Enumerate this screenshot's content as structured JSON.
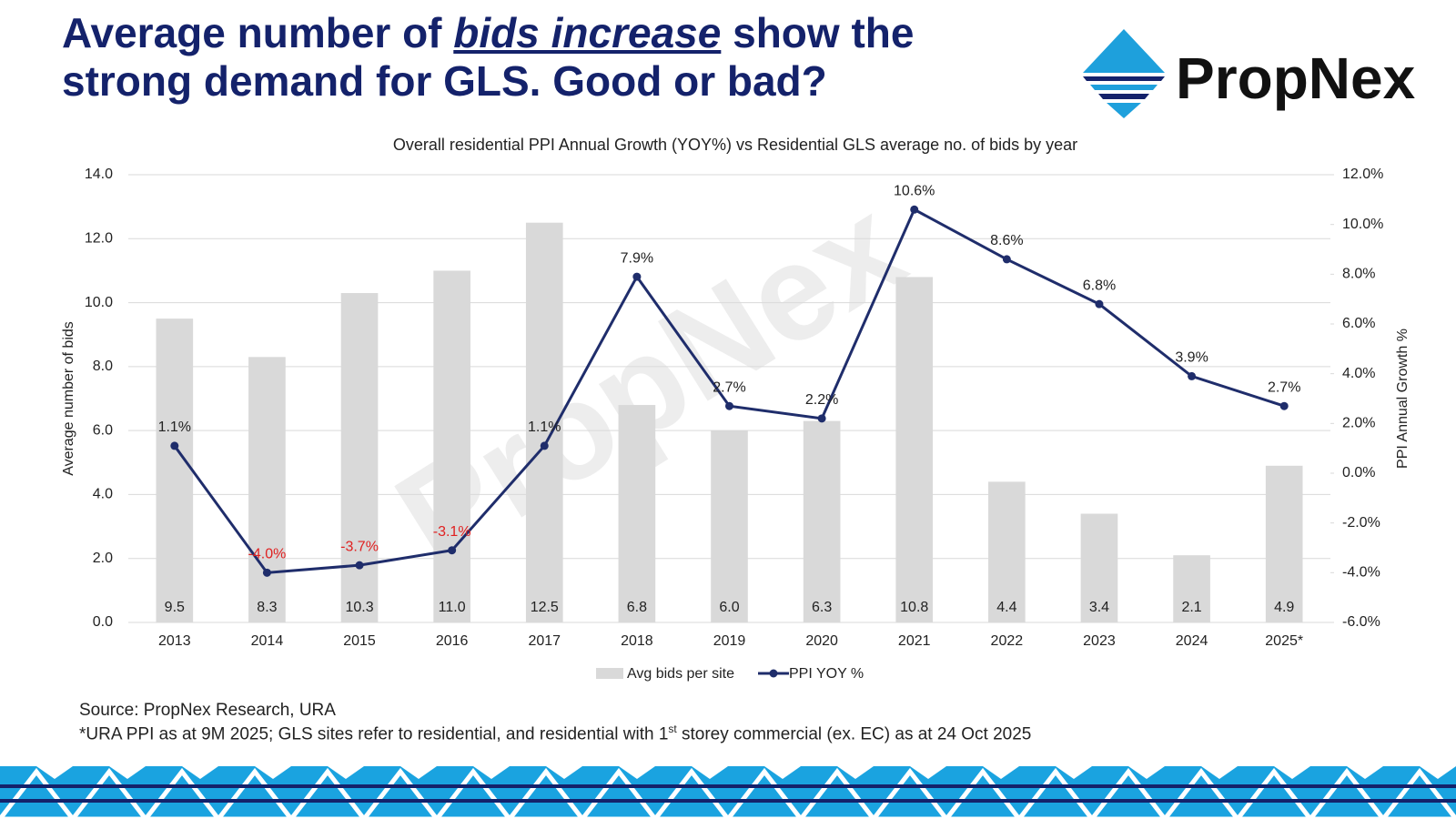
{
  "slide_title": {
    "before": "Average number of ",
    "emphasis": "bids increase",
    "after": " show the strong demand for GLS. Good or bad?"
  },
  "logo": "PropNex",
  "chart_data": {
    "type": "bar_line",
    "title": "Overall residential PPI Annual Growth (YOY%) vs Residential GLS average no. of bids by year",
    "watermark": "PropNex",
    "categories": [
      "2013",
      "2014",
      "2015",
      "2016",
      "2017",
      "2018",
      "2019",
      "2020",
      "2021",
      "2022",
      "2023",
      "2024",
      "2025*"
    ],
    "series": [
      {
        "name": "Avg bids per site",
        "type": "bar",
        "color": "#d9d9d9",
        "axis": "y",
        "values": [
          9.5,
          8.3,
          10.3,
          11.0,
          12.5,
          6.8,
          6.0,
          6.3,
          10.8,
          4.4,
          3.4,
          2.1,
          4.9
        ],
        "value_labels": [
          "9.5",
          "8.3",
          "10.3",
          "11.0",
          "12.5",
          "6.8",
          "6.0",
          "6.3",
          "10.8",
          "4.4",
          "3.4",
          "2.1",
          "4.9"
        ]
      },
      {
        "name": "PPI YOY %",
        "type": "line",
        "color": "#1f2d6b",
        "axis": "y2",
        "negative_label_color": "#e02020",
        "values": [
          1.1,
          -4.0,
          -3.7,
          -3.1,
          1.1,
          7.9,
          2.7,
          2.2,
          10.6,
          8.6,
          6.8,
          3.9,
          2.7
        ],
        "value_labels": [
          "1.1%",
          "-4.0%",
          "-3.7%",
          "-3.1%",
          "1.1%",
          "7.9%",
          "2.7%",
          "2.2%",
          "10.6%",
          "8.6%",
          "6.8%",
          "3.9%",
          "2.7%"
        ]
      }
    ],
    "ylabel": "Average number of bids",
    "y2label": "PPI Annual Growth %",
    "ylim": [
      0,
      14
    ],
    "y2lim": [
      -6,
      12
    ],
    "yticks": [
      {
        "value": 0,
        "label": "0.0"
      },
      {
        "value": 2,
        "label": "2.0"
      },
      {
        "value": 4,
        "label": "4.0"
      },
      {
        "value": 6,
        "label": "6.0"
      },
      {
        "value": 8,
        "label": "8.0"
      },
      {
        "value": 10,
        "label": "10.0"
      },
      {
        "value": 12,
        "label": "12.0"
      },
      {
        "value": 14,
        "label": "14.0"
      }
    ],
    "y2ticks": [
      {
        "value": -6,
        "label": "-6.0%"
      },
      {
        "value": -4,
        "label": "-4.0%"
      },
      {
        "value": -2,
        "label": "-2.0%"
      },
      {
        "value": 0,
        "label": "0.0%"
      },
      {
        "value": 2,
        "label": "2.0%"
      },
      {
        "value": 4,
        "label": "4.0%"
      },
      {
        "value": 6,
        "label": "6.0%"
      },
      {
        "value": 8,
        "label": "8.0%"
      },
      {
        "value": 10,
        "label": "10.0%"
      },
      {
        "value": 12,
        "label": "12.0%"
      }
    ],
    "grid": true,
    "legend": "bottom"
  },
  "source": "Source: PropNex Research, URA",
  "note": {
    "before": "*URA PPI as at 9M 2025; GLS sites refer to residential, and residential with 1",
    "sup": "st",
    "after": " storey commercial (ex. EC) as at 24 Oct 2025"
  }
}
